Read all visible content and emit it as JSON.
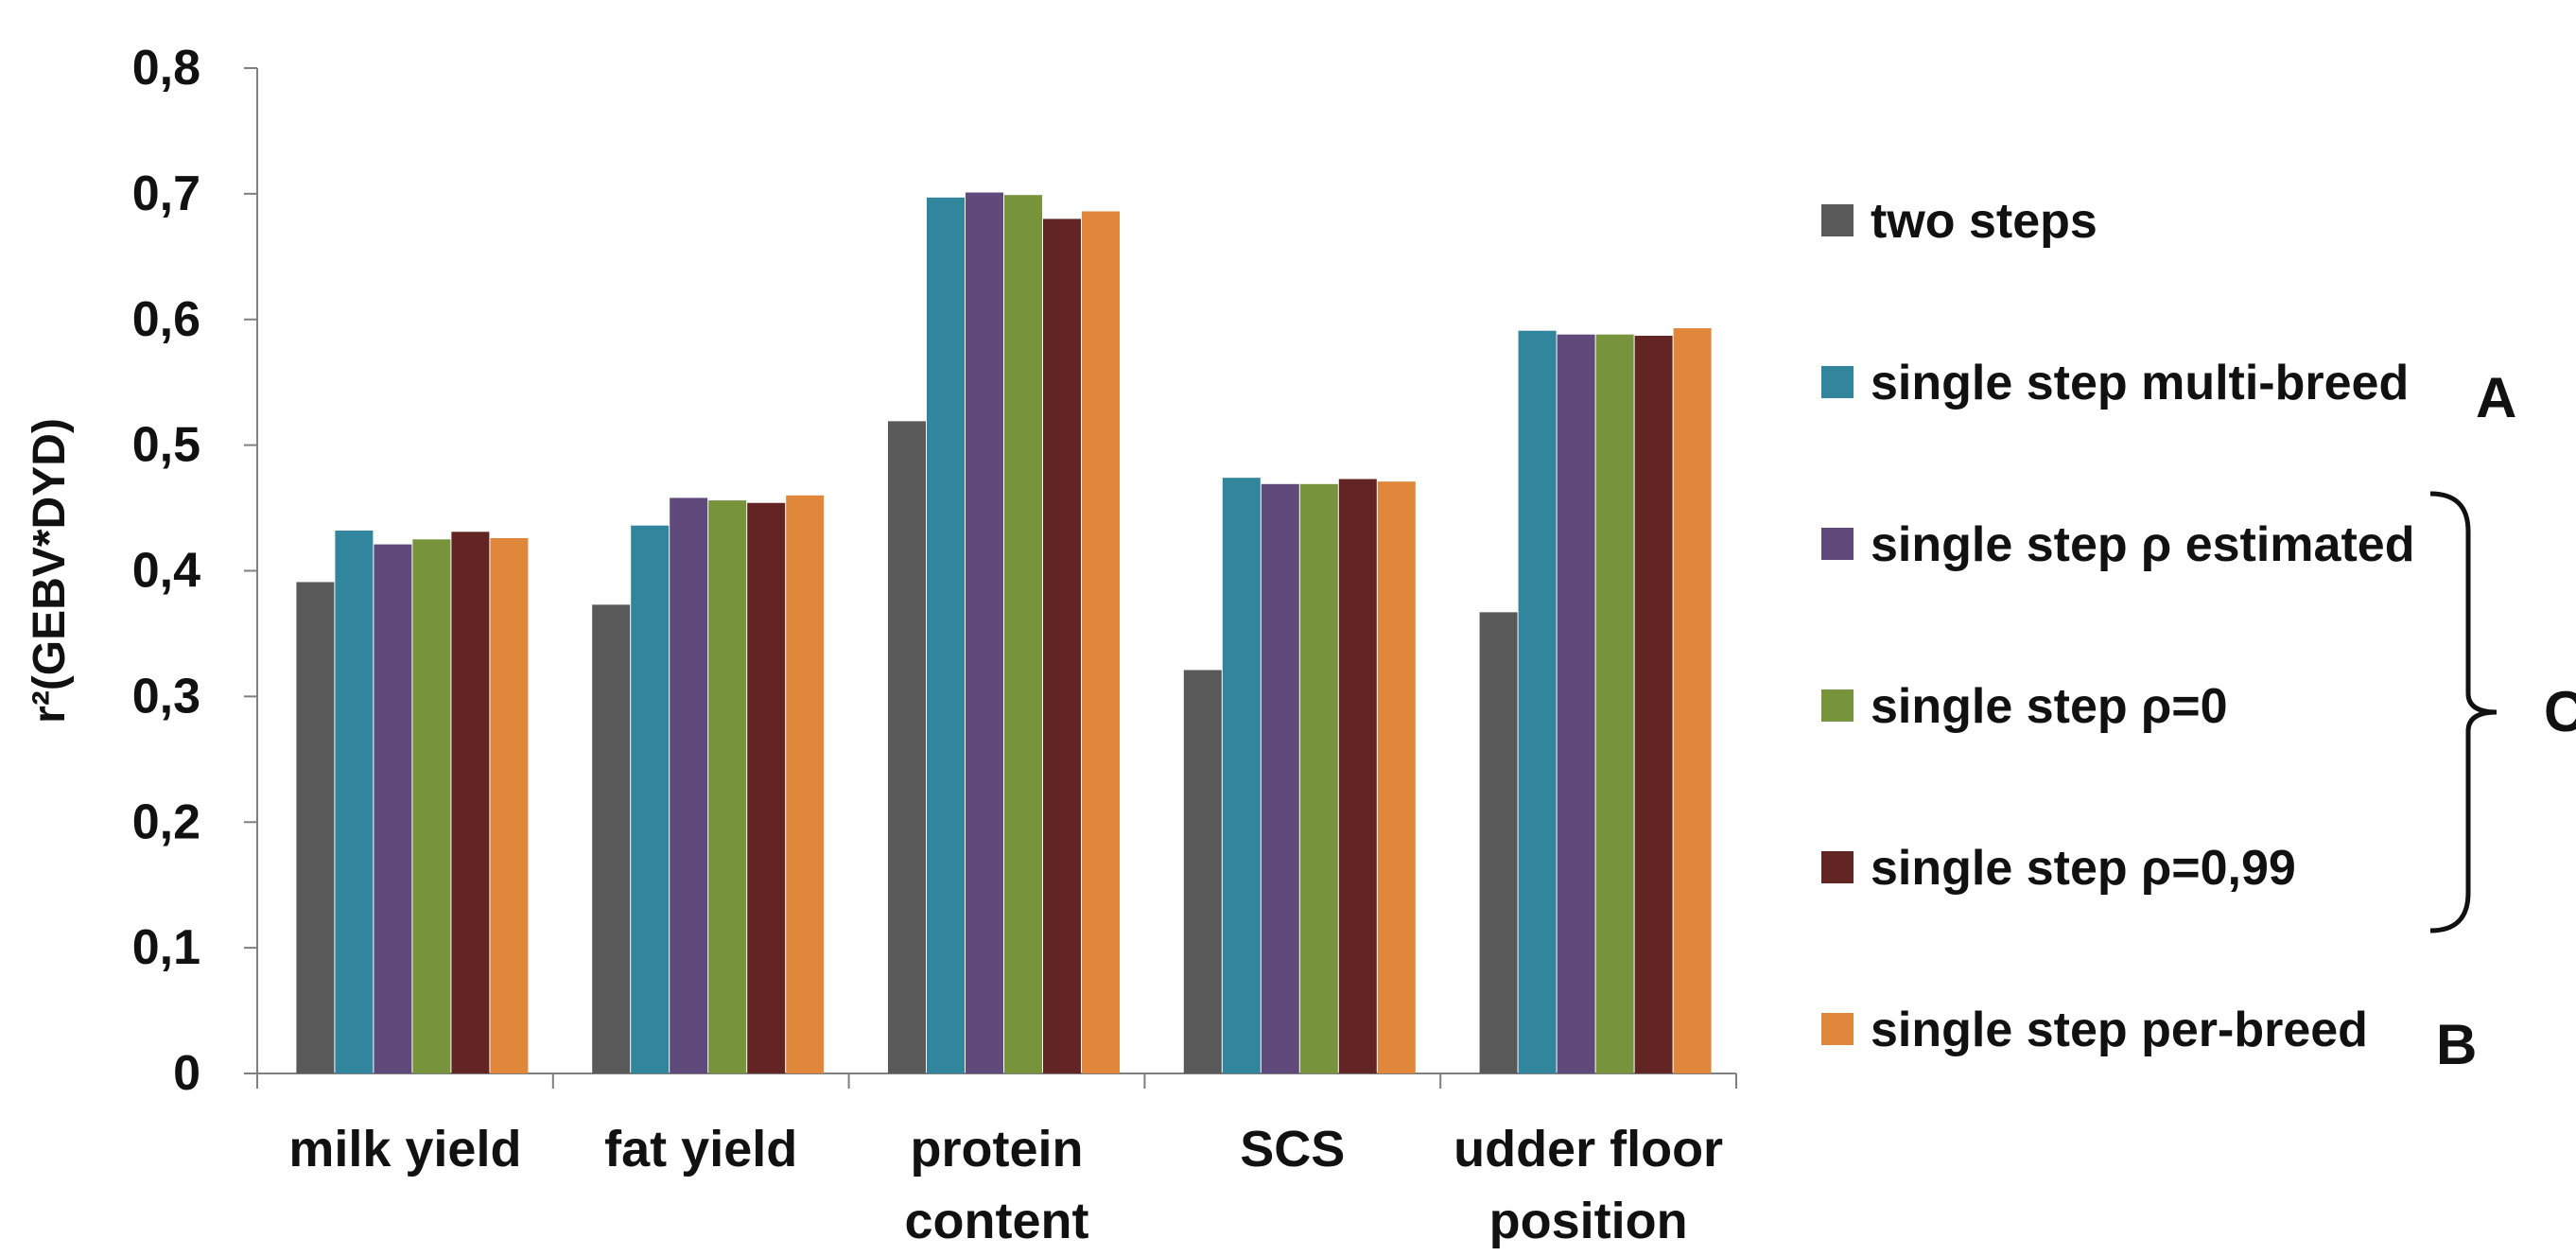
{
  "chart_data": {
    "type": "bar",
    "title": "",
    "xlabel": "",
    "ylabel": "r²(GEBV*DYD)",
    "ylim": [
      0,
      0.8
    ],
    "yticks": [
      "0",
      "0,1",
      "0,2",
      "0,3",
      "0,4",
      "0,5",
      "0,6",
      "0,7",
      "0,8"
    ],
    "grid": false,
    "legend_position": "right",
    "categories": [
      [
        "milk yield"
      ],
      [
        "fat yield"
      ],
      [
        "protein",
        "content"
      ],
      [
        "SCS"
      ],
      [
        "udder floor",
        "position"
      ]
    ],
    "series": [
      {
        "name": "two steps",
        "color": "#595959",
        "values": [
          0.391,
          0.373,
          0.519,
          0.321,
          0.367
        ]
      },
      {
        "name": "single step multi-breed",
        "color": "#31859C",
        "values": [
          0.432,
          0.436,
          0.697,
          0.474,
          0.591
        ]
      },
      {
        "name": "single step ρ estimated",
        "color": "#604A7B",
        "values": [
          0.421,
          0.458,
          0.701,
          0.469,
          0.588
        ]
      },
      {
        "name": "single step ρ=0",
        "color": "#77933C",
        "values": [
          0.425,
          0.456,
          0.699,
          0.469,
          0.588
        ]
      },
      {
        "name": "single step ρ=0,99",
        "color": "#632523",
        "values": [
          0.431,
          0.454,
          0.68,
          0.473,
          0.587
        ]
      },
      {
        "name": "single step per-breed",
        "color": "#E0873C",
        "values": [
          0.426,
          0.46,
          0.686,
          0.471,
          0.593
        ]
      }
    ],
    "annotations": [
      {
        "text": "A",
        "series_index": 1
      },
      {
        "text": "B",
        "series_index": 5
      },
      {
        "text": "C",
        "brace_from_series": 2,
        "brace_to_series": 4
      }
    ]
  }
}
